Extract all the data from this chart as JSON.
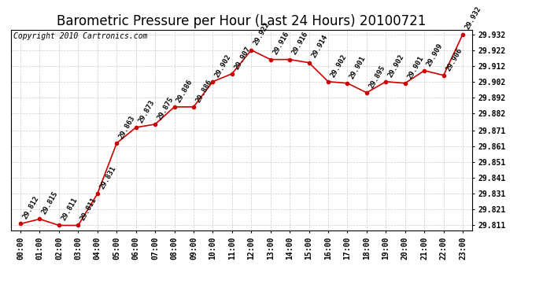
{
  "title": "Barometric Pressure per Hour (Last 24 Hours) 20100721",
  "copyright": "Copyright 2010 Cartronics.com",
  "hours": [
    "00:00",
    "01:00",
    "02:00",
    "03:00",
    "04:00",
    "05:00",
    "06:00",
    "07:00",
    "08:00",
    "09:00",
    "10:00",
    "11:00",
    "12:00",
    "13:00",
    "14:00",
    "15:00",
    "16:00",
    "17:00",
    "18:00",
    "19:00",
    "20:00",
    "21:00",
    "22:00",
    "23:00"
  ],
  "values": [
    29.812,
    29.815,
    29.811,
    29.811,
    29.831,
    29.863,
    29.873,
    29.875,
    29.886,
    29.886,
    29.902,
    29.907,
    29.922,
    29.916,
    29.916,
    29.914,
    29.902,
    29.901,
    29.895,
    29.902,
    29.901,
    29.909,
    29.906,
    29.932
  ],
  "line_color": "#cc0000",
  "marker_color": "#cc0000",
  "bg_color": "#ffffff",
  "grid_color": "#cccccc",
  "text_color": "#000000",
  "ylim_min": 29.808,
  "ylim_max": 29.935,
  "ytick_values": [
    29.811,
    29.821,
    29.831,
    29.841,
    29.851,
    29.861,
    29.871,
    29.882,
    29.892,
    29.902,
    29.912,
    29.922,
    29.932
  ],
  "title_fontsize": 12,
  "tick_fontsize": 7,
  "annotation_fontsize": 6.5,
  "copyright_fontsize": 7
}
